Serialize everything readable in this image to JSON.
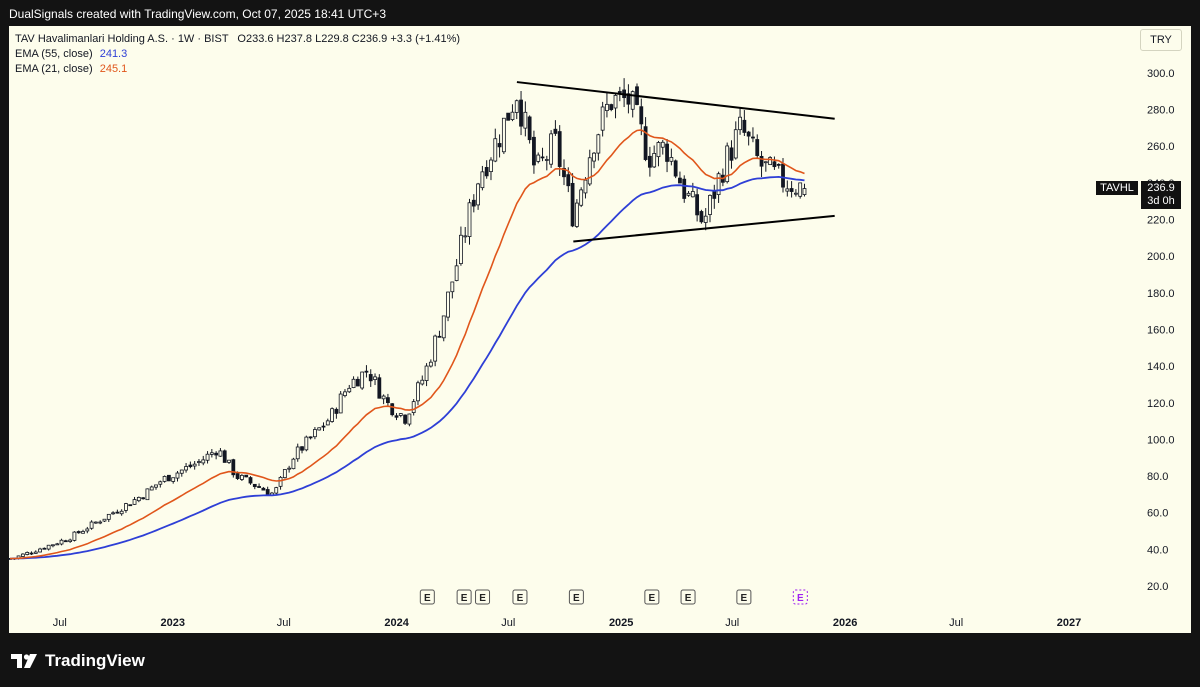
{
  "header": {
    "attribution": "DualSignals created with TradingView.com, Oct 07, 2025 18:41 UTC+3"
  },
  "legend": {
    "title": "TAV Havalimanlari Holding A.S. · 1W · BIST",
    "ohlc": "O233.6  H237.8  L229.8  C236.9  +3.3 (+1.41%)",
    "ema55_label": "EMA (55, close)",
    "ema55_value": "241.3",
    "ema21_label": "EMA (21, close)",
    "ema21_value": "245.1"
  },
  "currency": "TRY",
  "symbol_tag": "TAVHL",
  "price_tag": {
    "price": "236.9",
    "countdown": "3d 0h"
  },
  "footer": {
    "brand": "TradingView"
  },
  "colors": {
    "background": "#fdfdec",
    "ema55": "#2e3fd6",
    "ema21": "#e0561b",
    "candle": "#131722",
    "earnings": "#a020f0"
  },
  "chart_data": {
    "type": "candlestick",
    "interval": "1W",
    "y_axis": {
      "ticks": [
        20,
        40,
        60,
        80,
        100,
        120,
        140,
        160,
        180,
        200,
        220,
        240,
        260,
        280,
        300
      ],
      "range": [
        15,
        307
      ]
    },
    "x_axis": {
      "labels": [
        "Jul",
        "2023",
        "Jul",
        "2024",
        "Jul",
        "2025",
        "Jul",
        "2026",
        "Jul",
        "2027"
      ]
    },
    "close_path": [
      [
        "2022-04",
        35
      ],
      [
        "2022-07",
        46
      ],
      [
        "2022-09",
        58
      ],
      [
        "2022-11",
        70
      ],
      [
        "2022-12",
        78
      ],
      [
        "2023-02",
        88
      ],
      [
        "2023-03",
        95
      ],
      [
        "2023-04",
        80
      ],
      [
        "2023-06",
        70
      ],
      [
        "2023-07",
        90
      ],
      [
        "2023-09",
        112
      ],
      [
        "2023-10",
        130
      ],
      [
        "2023-11",
        138
      ],
      [
        "2023-12",
        120
      ],
      [
        "2024-01",
        112
      ],
      [
        "2024-02",
        135
      ],
      [
        "2024-03",
        165
      ],
      [
        "2024-04",
        205
      ],
      [
        "2024-05",
        245
      ],
      [
        "2024-06",
        265
      ],
      [
        "2024-07",
        290
      ],
      [
        "2024-08",
        245
      ],
      [
        "2024-09",
        262
      ],
      [
        "2024-10",
        222
      ],
      [
        "2024-11",
        262
      ],
      [
        "2024-12",
        285
      ],
      [
        "2025-01",
        285
      ],
      [
        "2025-02",
        255
      ],
      [
        "2025-03",
        260
      ],
      [
        "2025-04",
        235
      ],
      [
        "2025-05",
        218
      ],
      [
        "2025-06",
        248
      ],
      [
        "2025-07",
        270
      ],
      [
        "2025-08",
        250
      ],
      [
        "2025-09",
        242
      ],
      [
        "2025-10",
        236.9
      ]
    ],
    "series": [
      {
        "name": "EMA (55, close)",
        "last": 241.3
      },
      {
        "name": "EMA (21, close)",
        "last": 245.1
      }
    ],
    "trendlines": [
      {
        "from": [
          "2024-07",
          295
        ],
        "to": [
          "2025-12",
          275
        ]
      },
      {
        "from": [
          "2024-10",
          208
        ],
        "to": [
          "2025-12",
          222
        ]
      }
    ],
    "earnings_markers": [
      "2024-02",
      "2024-04",
      "2024-05",
      "2024-07",
      "2024-10",
      "2025-02",
      "2025-04",
      "2025-07",
      "2025-10"
    ],
    "last": {
      "open": 233.6,
      "high": 237.8,
      "low": 229.8,
      "close": 236.9,
      "change": "+3.3 (+1.41%)"
    }
  }
}
